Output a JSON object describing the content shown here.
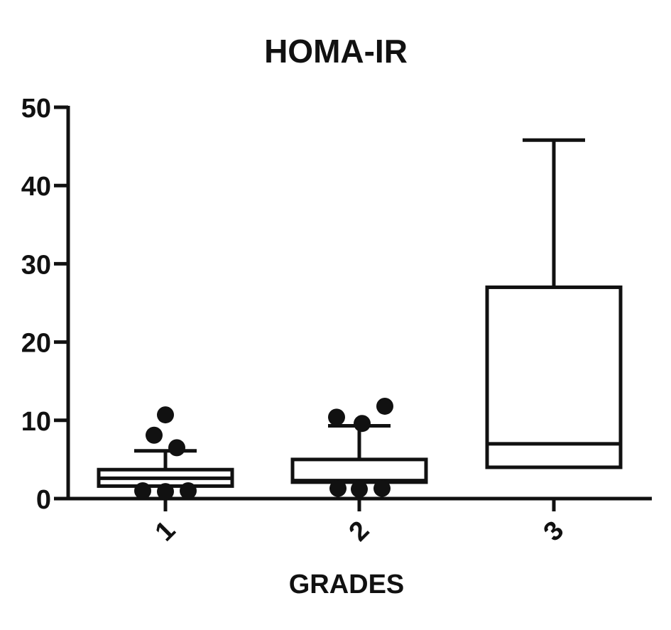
{
  "chart_data": {
    "type": "box",
    "title": "HOMA-IR",
    "xlabel": "GRADES",
    "ylabel": "",
    "ylim": [
      0,
      50
    ],
    "yticks": [
      0,
      10,
      20,
      30,
      40,
      50
    ],
    "grid": false,
    "legend": "none",
    "categories": [
      "1",
      "2",
      "3"
    ],
    "boxes": [
      {
        "category": "1",
        "whisker_low": 1.6,
        "q1": 1.6,
        "median": 2.6,
        "q3": 3.7,
        "whisker_high": 6.1,
        "outliers": [
          10.7,
          8.1,
          6.5,
          1.0,
          0.9,
          1.0
        ]
      },
      {
        "category": "2",
        "whisker_low": 2.1,
        "q1": 2.1,
        "median": 2.3,
        "q3": 5.0,
        "whisker_high": 9.3,
        "outliers": [
          10.4,
          9.6,
          11.8,
          1.3,
          1.2,
          1.3
        ]
      },
      {
        "category": "3",
        "whisker_low": 4.0,
        "q1": 4.0,
        "median": 7.0,
        "q3": 27.0,
        "whisker_high": 45.8,
        "outliers": []
      }
    ],
    "colors": {
      "ink": "#111111",
      "background": "#ffffff"
    }
  }
}
